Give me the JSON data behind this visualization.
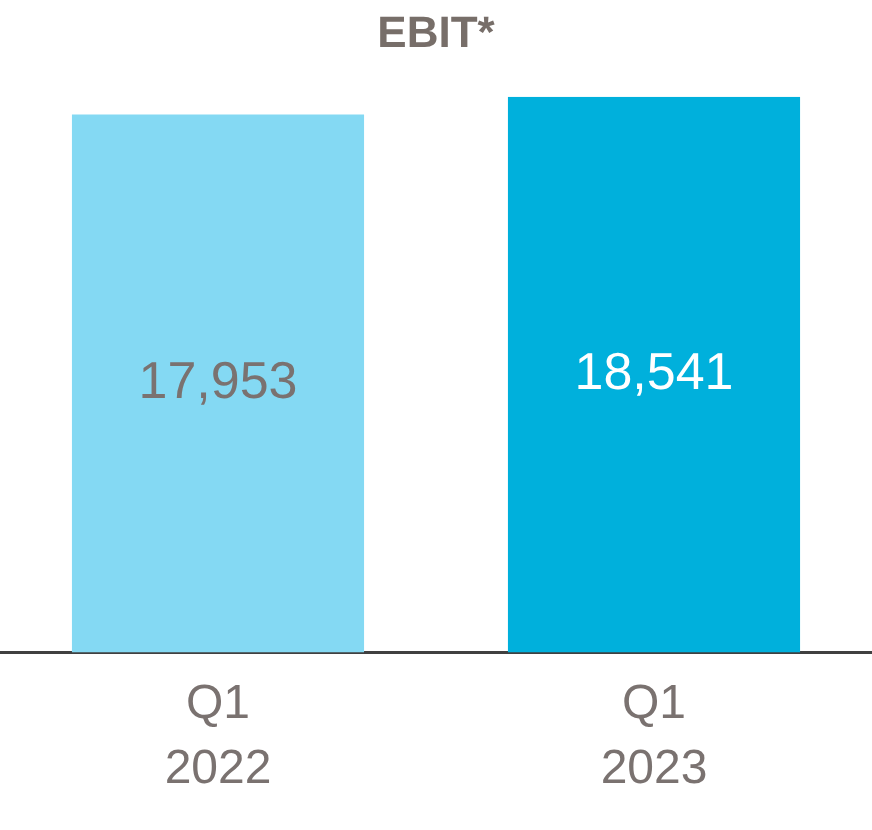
{
  "chart_data": {
    "type": "bar",
    "title": "EBIT*",
    "categories": [
      "Q1 2022",
      "Q1 2023"
    ],
    "colors": [
      "#84d9f3",
      "#00b0dc"
    ],
    "values": [
      17953,
      18541
    ],
    "value_labels": [
      "17,953",
      "18,541"
    ],
    "grid": false,
    "legend": false
  }
}
